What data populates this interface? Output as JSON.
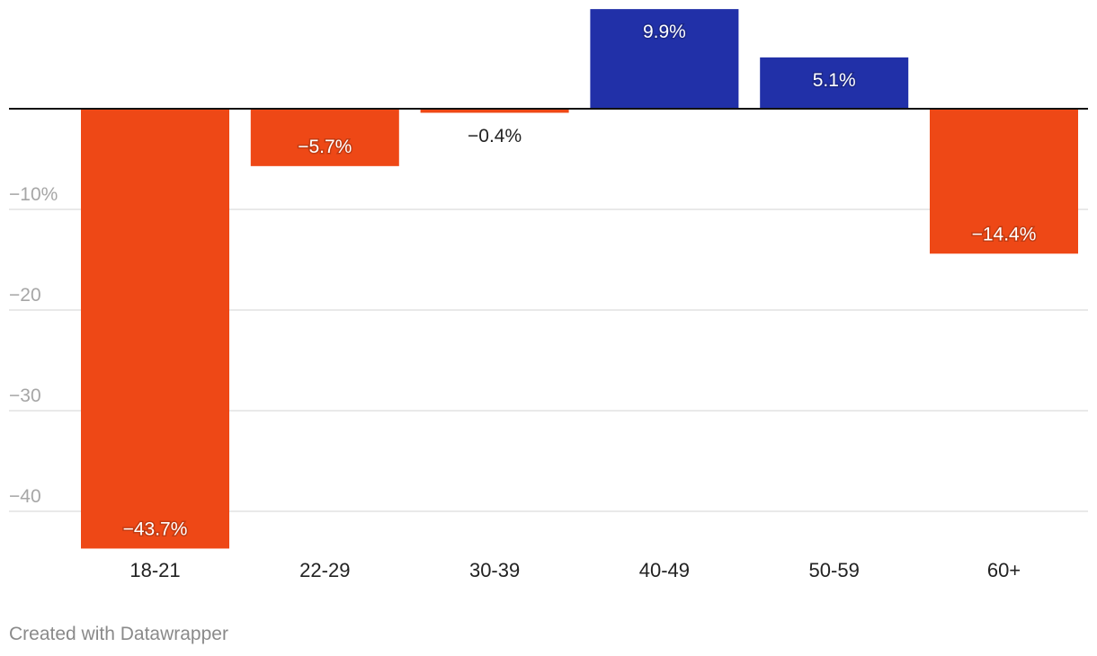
{
  "chart_data": {
    "type": "bar",
    "categories": [
      "18-21",
      "22-29",
      "30-39",
      "40-49",
      "50-59",
      "60+"
    ],
    "values": [
      -43.7,
      -5.7,
      -0.4,
      9.9,
      5.1,
      -14.4
    ],
    "labels": [
      "−43.7%",
      "−5.7%",
      "−0.4%",
      "9.9%",
      "5.1%",
      "−14.4%"
    ],
    "y_ticks": [
      {
        "value": -10,
        "label": "−10%"
      },
      {
        "value": -20,
        "label": "−20"
      },
      {
        "value": -30,
        "label": "−30"
      },
      {
        "value": -40,
        "label": "−40"
      }
    ],
    "ylim": [
      -44,
      10
    ],
    "grid": true,
    "colors": {
      "negative": "#ee4816",
      "positive": "#2130a8",
      "grid": "#e2e2e2",
      "axis": "#111111",
      "tick_label": "#a6a6a6",
      "category_label": "#222222"
    }
  },
  "footer": {
    "credit": "Created with Datawrapper"
  }
}
